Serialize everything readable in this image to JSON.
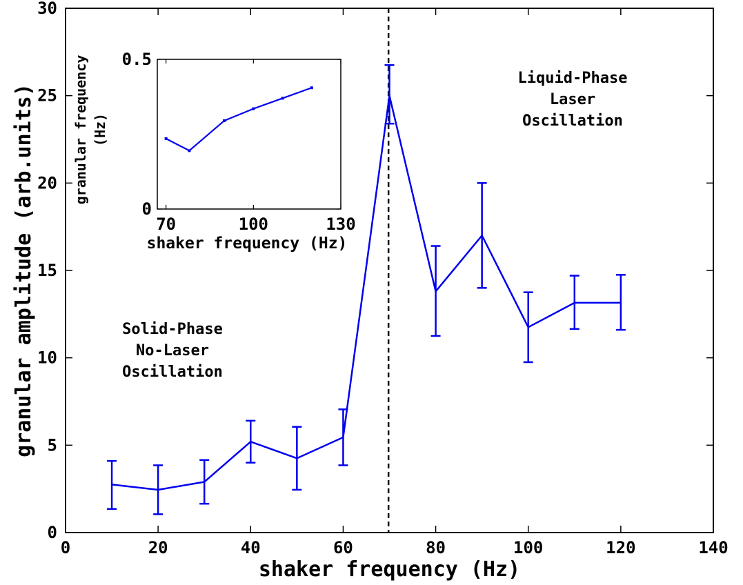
{
  "chart_data": [
    {
      "type": "line",
      "x": [
        10,
        20,
        30,
        40,
        50,
        60,
        70,
        80,
        90,
        100,
        110,
        120
      ],
      "series": [
        {
          "values": [
            2.75,
            2.45,
            2.9,
            5.2,
            4.25,
            5.45,
            25.0,
            13.8,
            17.0,
            11.75,
            13.15,
            13.15
          ],
          "error_low": [
            1.35,
            1.05,
            1.65,
            4.0,
            2.45,
            3.85,
            23.4,
            11.25,
            14.0,
            9.75,
            11.65,
            11.6
          ],
          "error_high": [
            4.1,
            3.85,
            4.15,
            6.4,
            6.05,
            7.05,
            26.75,
            16.4,
            20.0,
            13.75,
            14.7,
            14.75
          ],
          "color": "#0000ee"
        }
      ],
      "xlim": [
        0,
        140
      ],
      "ylim": [
        0,
        30
      ],
      "xticks": [
        "0",
        "20",
        "40",
        "60",
        "80",
        "100",
        "120",
        "140"
      ],
      "yticks": [
        "0",
        "5",
        "10",
        "15",
        "20",
        "25",
        "30"
      ],
      "xlabel": "shaker frequency (Hz)",
      "ylabel": "granular amplitude (arb.units)",
      "vline": {
        "x": 69.8,
        "style": "dashed",
        "color": "#000000"
      },
      "grid": false,
      "annotations": [
        [
          "Solid-Phase",
          "No-Laser",
          "Oscillation"
        ],
        [
          "Liquid-Phase",
          "Laser",
          "Oscillation"
        ]
      ]
    },
    {
      "type": "line",
      "inset": true,
      "x": [
        70,
        78,
        90,
        100,
        110,
        120
      ],
      "series": [
        {
          "values": [
            0.235,
            0.195,
            0.295,
            0.335,
            0.37,
            0.405
          ],
          "color": "#0000ee"
        }
      ],
      "xlim": [
        67,
        130
      ],
      "ylim": [
        0,
        0.5
      ],
      "xticks": [
        "70",
        "100",
        "130"
      ],
      "yticks": [
        "0",
        "0.5"
      ],
      "xlabel": "shaker frequency (Hz)",
      "ylabel": [
        "granular frequency",
        "(Hz)"
      ]
    }
  ]
}
